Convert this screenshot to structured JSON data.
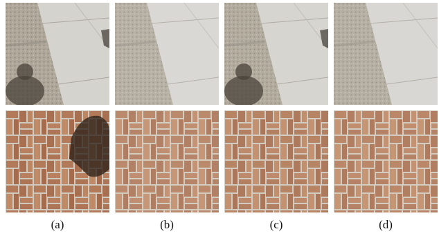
{
  "figure": {
    "labels": [
      "(a)",
      "(b)",
      "(c)",
      "(d)"
    ]
  }
}
